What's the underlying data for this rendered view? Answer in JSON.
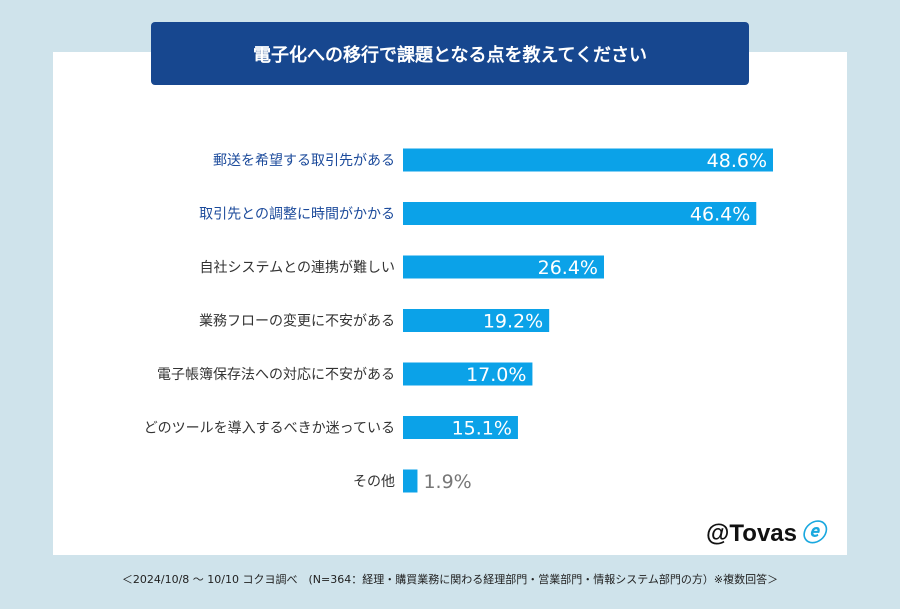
{
  "chart_data": {
    "type": "bar",
    "orientation": "horizontal",
    "title": "電子化への移行で課題となる点を教えてください",
    "categories": [
      "郵送を希望する取引先がある",
      "取引先との調整に時間がかかる",
      "自社システムとの連携が難しい",
      "業務フローの変更に不安がある",
      "電子帳簿保存法への対応に不安がある",
      "どのツールを導入するべきか迷っている",
      "その他"
    ],
    "values": [
      48.6,
      46.4,
      26.4,
      19.2,
      17.0,
      15.1,
      1.9
    ],
    "value_labels": [
      "48.6%",
      "46.4%",
      "26.4%",
      "19.2%",
      "17.0%",
      "15.1%",
      "1.9%"
    ],
    "unit": "%",
    "highlighted_categories": [
      0,
      1
    ],
    "grid": false,
    "colors": {
      "bar": "#0ba2e8",
      "highlight_label": "#1b4a9b",
      "label": "#333333",
      "title_bg": "#17478f",
      "background": "#cfe3eb"
    }
  },
  "footer": "＜2024/10/8 ～ 10/10 コクヨ調べ　(N=364：経理・購買業務に関わる経理部門・営業部門・情報システム部門の方）※複数回答＞",
  "logo": {
    "text": "@Tovas",
    "icon": "tovas-swirl-icon"
  }
}
